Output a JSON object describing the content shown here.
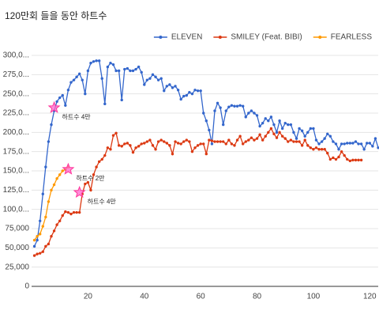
{
  "chart_data": {
    "type": "line",
    "title": "120만회 들을 동안 하트수",
    "xlim": [
      0,
      123
    ],
    "xticks": [
      20,
      40,
      60,
      80,
      100,
      120
    ],
    "ylim": [
      0,
      300000
    ],
    "yticks": [
      0,
      {
        "value": 25000,
        "label": "25,000"
      },
      {
        "value": 50000,
        "label": "50,000"
      },
      {
        "value": 75000,
        "label": "75,000"
      },
      {
        "value": 100000,
        "label": "100,0..."
      },
      {
        "value": 125000,
        "label": "125,0..."
      },
      {
        "value": 150000,
        "label": "150,0..."
      },
      {
        "value": 175000,
        "label": "175,0..."
      },
      {
        "value": 200000,
        "label": "200,0..."
      },
      {
        "value": 225000,
        "label": "225,0..."
      },
      {
        "value": 250000,
        "label": "250,0..."
      },
      {
        "value": 275000,
        "label": "275,0..."
      },
      {
        "value": 300000,
        "label": "300,0..."
      }
    ],
    "grid": true,
    "legend": "top-right",
    "series": [
      {
        "name": "ELEVEN",
        "color": "#3366cc",
        "x": [
          1,
          2,
          3,
          4,
          5,
          6,
          7,
          8,
          9,
          10,
          11,
          12,
          13,
          14,
          15,
          16,
          17,
          18,
          19,
          20,
          21,
          22,
          23,
          24,
          25,
          26,
          27,
          28,
          29,
          30,
          31,
          32,
          33,
          34,
          35,
          36,
          37,
          38,
          39,
          40,
          41,
          42,
          43,
          44,
          45,
          46,
          47,
          48,
          49,
          50,
          51,
          52,
          53,
          54,
          55,
          56,
          57,
          58,
          59,
          60,
          61,
          62,
          63,
          64,
          65,
          66,
          67,
          68,
          69,
          70,
          71,
          72,
          73,
          74,
          75,
          76,
          77,
          78,
          79,
          80,
          81,
          82,
          83,
          84,
          85,
          86,
          87,
          88,
          89,
          90,
          91,
          92,
          93,
          94,
          95,
          96,
          97,
          98,
          99,
          100,
          101,
          102,
          103,
          104,
          105,
          106,
          107,
          108,
          109,
          110,
          111,
          112,
          113,
          114,
          115,
          116,
          117,
          118,
          119,
          120,
          121,
          122,
          123
        ],
        "values": [
          52000,
          60000,
          85000,
          120000,
          155000,
          188000,
          210000,
          228000,
          240000,
          245000,
          248000,
          235000,
          255000,
          265000,
          268000,
          272000,
          276000,
          268000,
          250000,
          280000,
          290000,
          292000,
          293000,
          293000,
          270000,
          237000,
          285000,
          290000,
          288000,
          280000,
          280000,
          242000,
          282000,
          283000,
          280000,
          280000,
          282000,
          285000,
          278000,
          262000,
          268000,
          270000,
          275000,
          272000,
          268000,
          270000,
          254000,
          260000,
          262000,
          258000,
          260000,
          255000,
          243000,
          247000,
          248000,
          252000,
          250000,
          255000,
          254000,
          254000,
          225000,
          215000,
          203000,
          185000,
          228000,
          238000,
          232000,
          210000,
          228000,
          233000,
          235000,
          234000,
          234000,
          235000,
          234000,
          220000,
          225000,
          228000,
          225000,
          222000,
          208000,
          212000,
          218000,
          215000,
          220000,
          210000,
          200000,
          215000,
          205000,
          212000,
          210000,
          210000,
          200000,
          192000,
          205000,
          202000,
          195000,
          200000,
          205000,
          205000,
          190000,
          185000,
          188000,
          192000,
          198000,
          195000,
          188000,
          185000,
          178000,
          185000,
          185000,
          186000,
          186000,
          186000,
          188000,
          185000,
          185000,
          178000,
          186000,
          186000,
          182000,
          192000,
          180000
        ]
      },
      {
        "name": "SMILEY (Feat. BIBI)",
        "color": "#dc3912",
        "x": [
          1,
          2,
          3,
          4,
          5,
          6,
          7,
          8,
          9,
          10,
          11,
          12,
          13,
          14,
          15,
          16,
          17,
          18,
          19,
          20,
          21,
          22,
          23,
          24,
          25,
          26,
          27,
          28,
          29,
          30,
          31,
          32,
          33,
          34,
          35,
          36,
          37,
          38,
          39,
          40,
          41,
          42,
          43,
          44,
          45,
          46,
          47,
          48,
          49,
          50,
          51,
          52,
          53,
          54,
          55,
          56,
          57,
          58,
          59,
          60,
          61,
          62,
          63,
          64,
          65,
          66,
          67,
          68,
          69,
          70,
          71,
          72,
          73,
          74,
          75,
          76,
          77,
          78,
          79,
          80,
          81,
          82,
          83,
          84,
          85,
          86,
          87,
          88,
          89,
          90,
          91,
          92,
          93,
          94,
          95,
          96,
          97,
          98,
          99,
          100,
          101,
          102,
          103,
          104,
          105,
          106,
          107,
          108,
          109,
          110,
          111,
          112,
          113,
          114,
          115,
          116,
          117
        ],
        "values": [
          40000,
          42000,
          43000,
          45000,
          52000,
          55000,
          65000,
          72000,
          80000,
          85000,
          92000,
          97000,
          96000,
          94000,
          96000,
          96000,
          96000,
          120000,
          133000,
          135000,
          125000,
          145000,
          155000,
          162000,
          165000,
          170000,
          180000,
          178000,
          196000,
          199000,
          183000,
          182000,
          185000,
          186000,
          183000,
          174000,
          180000,
          182000,
          185000,
          186000,
          188000,
          190000,
          183000,
          178000,
          188000,
          190000,
          188000,
          186000,
          183000,
          172000,
          188000,
          186000,
          185000,
          188000,
          190000,
          188000,
          175000,
          180000,
          183000,
          185000,
          185000,
          172000,
          190000,
          189000,
          188000,
          188000,
          188000,
          188000,
          185000,
          190000,
          185000,
          183000,
          190000,
          195000,
          185000,
          188000,
          190000,
          193000,
          190000,
          192000,
          197000,
          190000,
          195000,
          200000,
          205000,
          198000,
          193000,
          200000,
          195000,
          192000,
          188000,
          190000,
          188000,
          188000,
          188000,
          183000,
          190000,
          183000,
          180000,
          178000,
          180000,
          178000,
          178000,
          178000,
          173000,
          165000,
          167000,
          165000,
          168000,
          175000,
          170000,
          165000,
          163000,
          164000,
          164000,
          164000,
          164000
        ]
      },
      {
        "name": "FEARLESS",
        "color": "#ff9900",
        "x": [
          1,
          2,
          3,
          4,
          5,
          6,
          7,
          8,
          9,
          10,
          11,
          12,
          13
        ],
        "values": [
          60000,
          65000,
          68000,
          78000,
          90000,
          110000,
          125000,
          132000,
          140000,
          145000,
          150000,
          152000,
          155000
        ]
      }
    ],
    "annotations": [
      {
        "text": "하트수 4만",
        "x": 8,
        "y": 232000
      },
      {
        "text": "하트수 2만",
        "x": 13,
        "y": 152000
      },
      {
        "text": "하트수 4만",
        "x": 17,
        "y": 122000
      }
    ]
  }
}
